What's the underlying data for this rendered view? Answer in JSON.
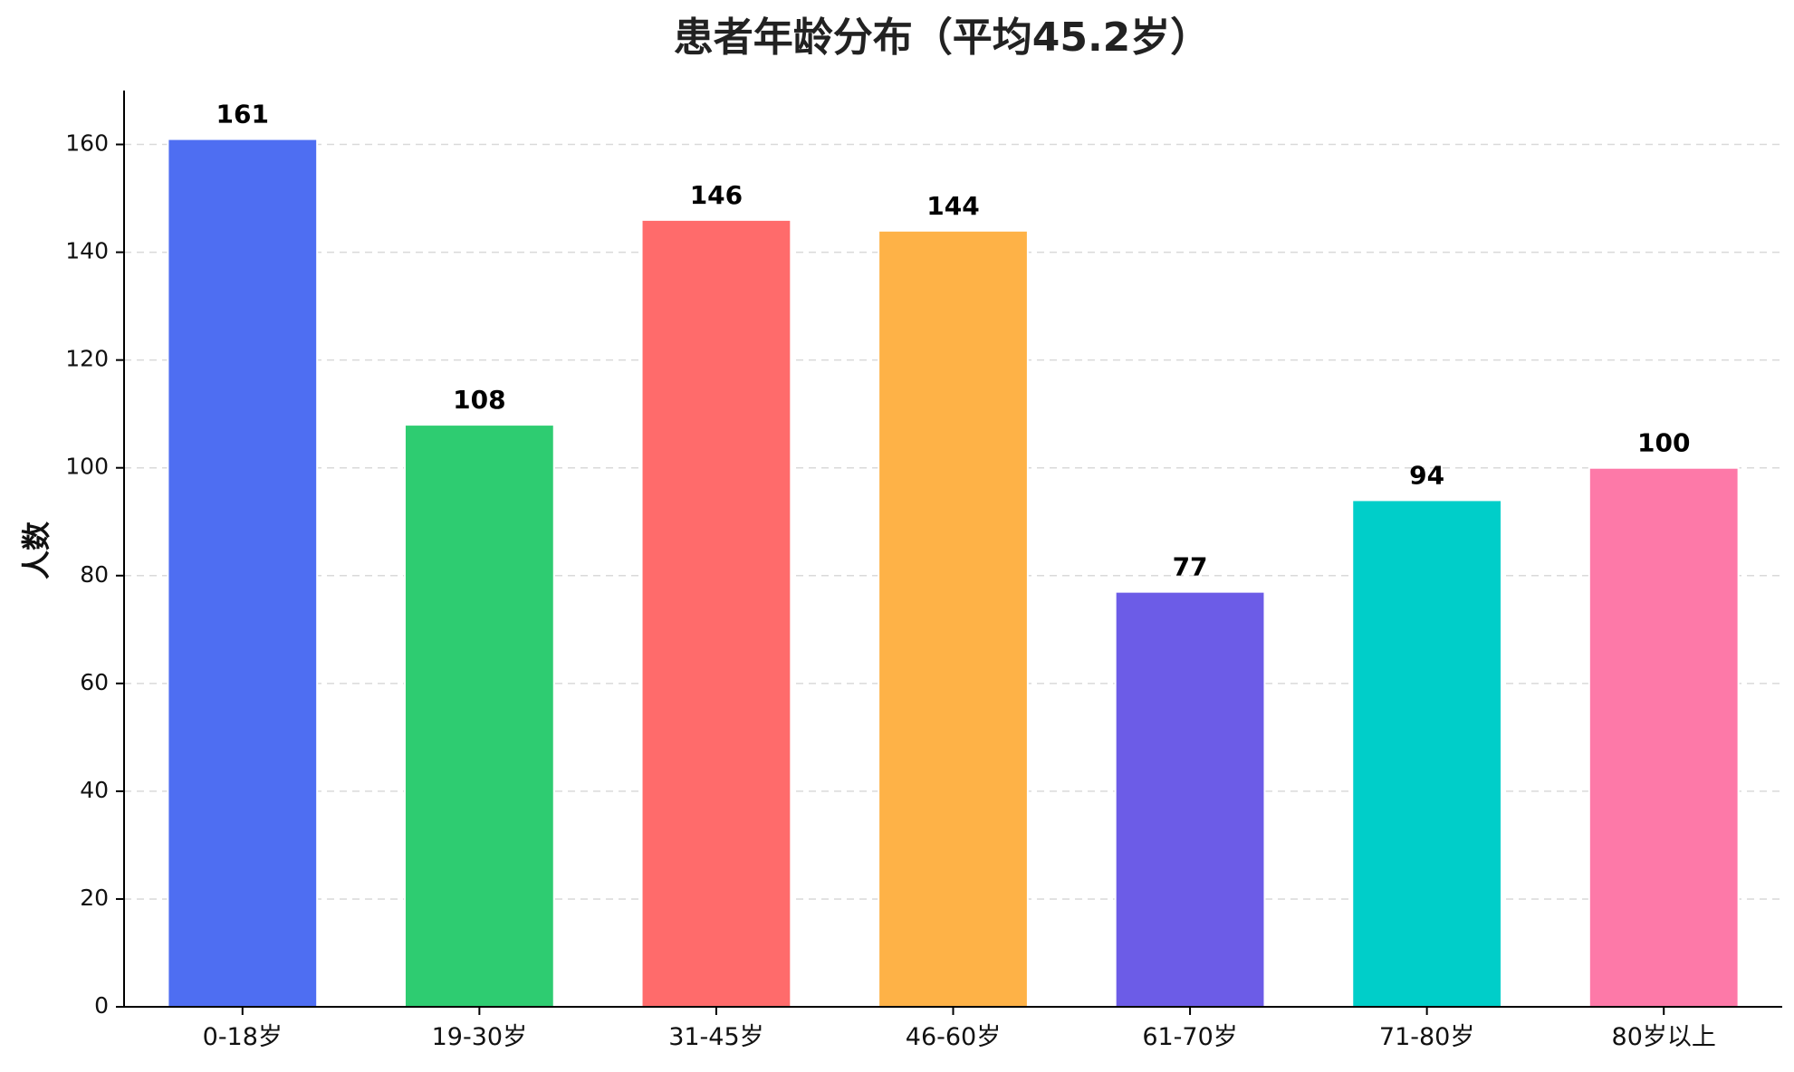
{
  "chart_data": {
    "type": "bar",
    "title": "患者年龄分布（平均45.2岁）",
    "xlabel": "",
    "ylabel": "人数",
    "categories": [
      "0-18岁",
      "19-30岁",
      "31-45岁",
      "46-60岁",
      "61-70岁",
      "71-80岁",
      "80岁以上"
    ],
    "values": [
      161,
      108,
      146,
      144,
      77,
      94,
      100
    ],
    "value_labels": [
      "161",
      "108",
      "146",
      "144",
      "77",
      "94",
      "100"
    ],
    "colors": [
      "#4e6ef2",
      "#2ecc71",
      "#ff6b6b",
      "#feb247",
      "#6c5ce7",
      "#00cec9",
      "#fd79a8"
    ],
    "ylim": [
      0,
      170
    ],
    "yticks": [
      0,
      20,
      40,
      60,
      80,
      100,
      120,
      140,
      160
    ],
    "ytick_labels": [
      "0",
      "20",
      "40",
      "60",
      "80",
      "100",
      "120",
      "140",
      "160"
    ],
    "grid": "y-dashed",
    "legend": "none"
  }
}
